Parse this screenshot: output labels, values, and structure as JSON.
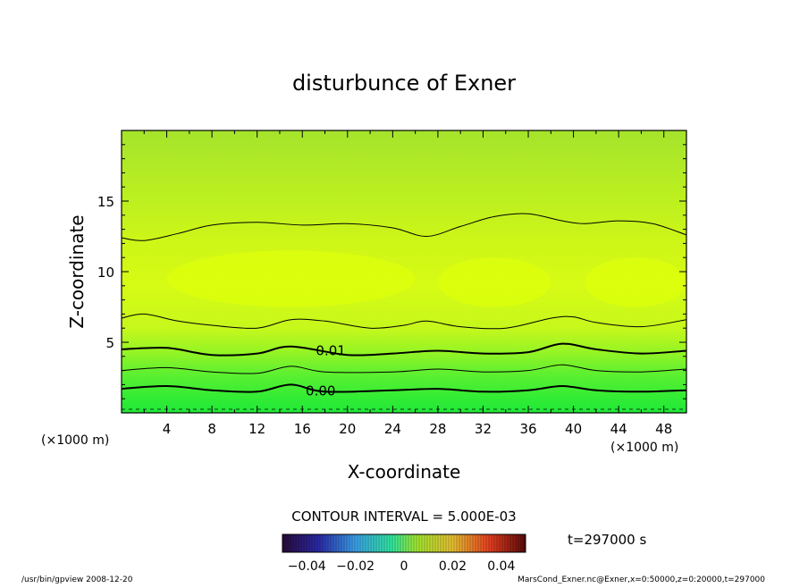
{
  "chart_data": {
    "type": "contour",
    "title": "disturbunce of Exner",
    "xlabel": "X-coordinate",
    "ylabel": "Z-coordinate",
    "x_unit": "(×1000 m)",
    "z_unit": "(×1000 m)",
    "xlim": [
      0,
      50
    ],
    "ylim": [
      0,
      20
    ],
    "x_ticks": [
      4,
      8,
      12,
      16,
      20,
      24,
      28,
      32,
      36,
      40,
      44,
      48
    ],
    "y_ticks": [
      5,
      10,
      15
    ],
    "contour_interval_text": "CONTOUR INTERVAL = 5.000E-03",
    "time_text": "t=297000 s",
    "colorbar": {
      "range": [
        -0.05,
        0.05
      ],
      "tick_labels": [
        "−0.04",
        "−0.02",
        "0",
        "0.02",
        "0.04"
      ],
      "tick_values": [
        -0.04,
        -0.02,
        0,
        0.02,
        0.04
      ]
    },
    "contours": [
      {
        "level": 0.0,
        "label": "0.00",
        "labeled": true,
        "z": [
          [
            0,
            1.7
          ],
          [
            4,
            1.9
          ],
          [
            8,
            1.6
          ],
          [
            12,
            1.5
          ],
          [
            15,
            2.0
          ],
          [
            18,
            1.5
          ],
          [
            24,
            1.6
          ],
          [
            28,
            1.7
          ],
          [
            32,
            1.5
          ],
          [
            36,
            1.6
          ],
          [
            39,
            1.9
          ],
          [
            42,
            1.6
          ],
          [
            46,
            1.5
          ],
          [
            50,
            1.6
          ]
        ]
      },
      {
        "level": 0.005,
        "labeled": false,
        "z": [
          [
            0,
            3.0
          ],
          [
            4,
            3.2
          ],
          [
            8,
            2.9
          ],
          [
            12,
            2.8
          ],
          [
            15,
            3.3
          ],
          [
            18,
            2.9
          ],
          [
            24,
            2.9
          ],
          [
            28,
            3.1
          ],
          [
            32,
            2.9
          ],
          [
            36,
            3.0
          ],
          [
            39,
            3.4
          ],
          [
            42,
            3.0
          ],
          [
            46,
            2.9
          ],
          [
            50,
            3.1
          ]
        ]
      },
      {
        "level": 0.01,
        "label": "0.01",
        "labeled": true,
        "z": [
          [
            0,
            4.5
          ],
          [
            4,
            4.6
          ],
          [
            8,
            4.1
          ],
          [
            12,
            4.2
          ],
          [
            15,
            4.7
          ],
          [
            20,
            4.1
          ],
          [
            24,
            4.2
          ],
          [
            28,
            4.4
          ],
          [
            32,
            4.2
          ],
          [
            36,
            4.3
          ],
          [
            39,
            4.9
          ],
          [
            42,
            4.5
          ],
          [
            46,
            4.2
          ],
          [
            50,
            4.4
          ]
        ]
      },
      {
        "level": 0.015,
        "labeled": false,
        "z": [
          [
            0,
            6.7
          ],
          [
            2,
            7.0
          ],
          [
            5,
            6.5
          ],
          [
            8,
            6.2
          ],
          [
            12,
            6.0
          ],
          [
            15,
            6.6
          ],
          [
            18,
            6.5
          ],
          [
            22,
            6.0
          ],
          [
            25,
            6.2
          ],
          [
            27,
            6.5
          ],
          [
            30,
            6.1
          ],
          [
            34,
            6.0
          ],
          [
            38,
            6.7
          ],
          [
            40,
            6.8
          ],
          [
            42,
            6.4
          ],
          [
            46,
            6.1
          ],
          [
            50,
            6.6
          ]
        ]
      },
      {
        "level": 0.02,
        "labeled": false,
        "z": [
          [
            0,
            12.4
          ],
          [
            2,
            12.2
          ],
          [
            5,
            12.7
          ],
          [
            8,
            13.3
          ],
          [
            12,
            13.5
          ],
          [
            16,
            13.3
          ],
          [
            20,
            13.4
          ],
          [
            24,
            13.1
          ],
          [
            27,
            12.5
          ],
          [
            30,
            13.2
          ],
          [
            33,
            13.9
          ],
          [
            36,
            14.1
          ],
          [
            39,
            13.6
          ],
          [
            41,
            13.4
          ],
          [
            44,
            13.6
          ],
          [
            47,
            13.4
          ],
          [
            50,
            12.6
          ]
        ]
      }
    ],
    "maxima_regions": [
      {
        "x_range": [
          4,
          26
        ],
        "z_range": [
          7.5,
          11.5
        ]
      },
      {
        "x_range": [
          28,
          38
        ],
        "z_range": [
          7.5,
          11
        ]
      },
      {
        "x_range": [
          41,
          50
        ],
        "z_range": [
          7.5,
          11
        ]
      }
    ]
  },
  "footer": {
    "left": "/usr/bin/gpview   2008-12-20",
    "right": "MarsCond_Exner.nc@Exner,x=0:50000,z=0:20000,t=297000"
  },
  "colors": {
    "band_lowest": "#22e83c",
    "band_top": "#a8e82e",
    "max_region": "#dcff0c",
    "contour_line": "#000000"
  }
}
